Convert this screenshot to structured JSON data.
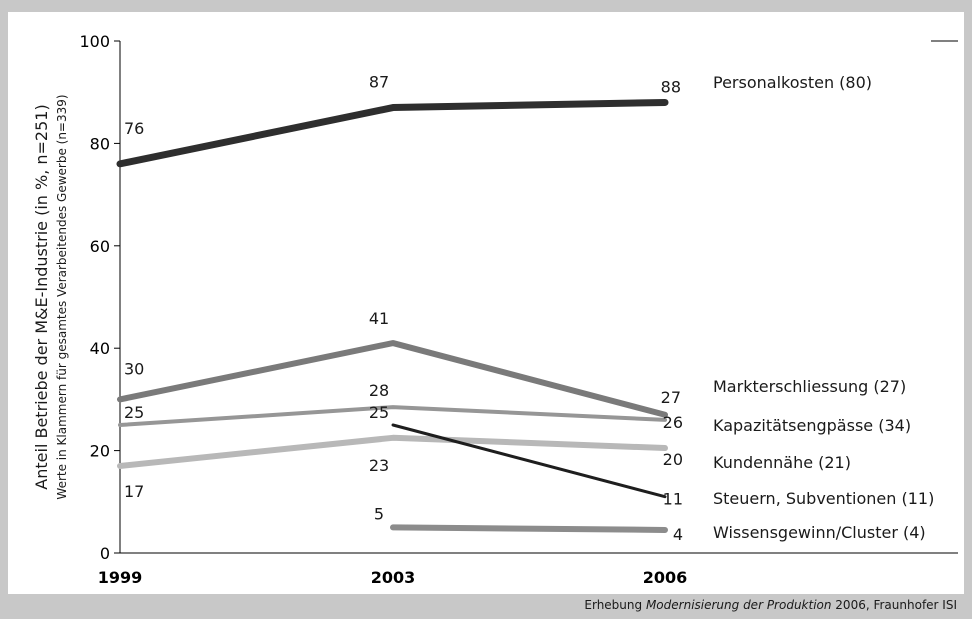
{
  "chart_data": {
    "type": "line",
    "x": [
      "1999",
      "2003",
      "2006"
    ],
    "ylim": [
      0,
      100
    ],
    "yticks": [
      0,
      20,
      40,
      60,
      80,
      100
    ],
    "ylabel": "Anteil Betriebe der M&E-Industrie (in %, n=251)",
    "ylabel_sub": "Werte in Klammern für gesamtes Verarbeitendes Gewerbe (n=339)",
    "source_prefix": "Erhebung ",
    "source_italic": "Modernisierung der Produktion",
    "source_suffix": " 2006, Fraunhofer ISI",
    "grid": false,
    "series": [
      {
        "name": "Personalkosten (80)",
        "values": [
          76,
          87,
          88
        ],
        "color": "#2e2e2e",
        "labels": [
          "76",
          "87",
          "88"
        ]
      },
      {
        "name": "Markterschliessung (27)",
        "values": [
          30,
          41,
          27
        ],
        "color": "#7a7a7a",
        "labels": [
          "30",
          "41",
          "27"
        ]
      },
      {
        "name": "Kapazitätsengpässe (34)",
        "values": [
          25,
          28.5,
          26
        ],
        "color": "#969696",
        "labels": [
          "25",
          "28",
          "26"
        ]
      },
      {
        "name": "Kundennähe (21)",
        "values": [
          17,
          22.5,
          20.5
        ],
        "color": "#b8b8b8",
        "labels": [
          "17",
          "23",
          "20"
        ]
      },
      {
        "name": "Steuern, Subventionen (11)",
        "values": [
          null,
          25,
          11
        ],
        "color": "#1e1e1e",
        "labels": [
          null,
          "25",
          "11"
        ]
      },
      {
        "name": "Wissensgewinn/Cluster (4)",
        "values": [
          null,
          5,
          4.5
        ],
        "color": "#8c8c8c",
        "labels": [
          null,
          "5",
          "4"
        ]
      }
    ]
  }
}
